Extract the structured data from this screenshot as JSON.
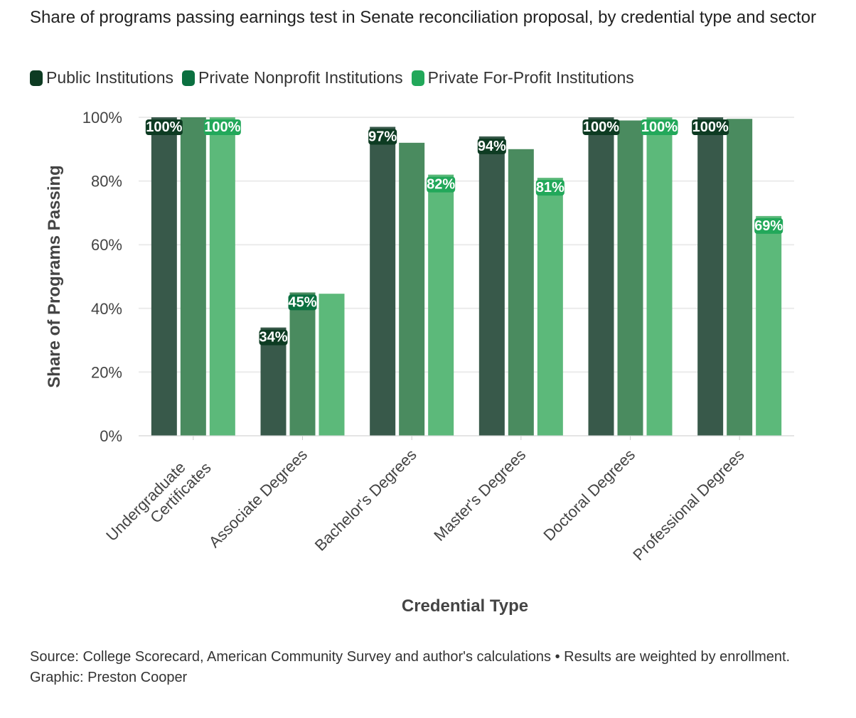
{
  "chart_data": {
    "type": "bar",
    "title": "Share of programs passing earnings test in Senate reconciliation proposal, by credential type and sector",
    "xlabel": "Credential Type",
    "ylabel": "Share of Programs Passing",
    "ylim": [
      0,
      100
    ],
    "yticks": [
      "0%",
      "20%",
      "40%",
      "60%",
      "80%",
      "100%"
    ],
    "ytick_values": [
      0,
      20,
      40,
      60,
      80,
      100
    ],
    "grid": true,
    "legend_position": "top-left",
    "categories": [
      [
        "Undergraduate",
        "Certificates"
      ],
      [
        "Associate Degrees"
      ],
      [
        "Bachelor's Degrees"
      ],
      [
        "Master's Degrees"
      ],
      [
        "Doctoral Degrees"
      ],
      [
        "Professional Degrees"
      ]
    ],
    "series": [
      {
        "name": "Public Institutions",
        "legend_color": "#0d3b22",
        "bar_color": "#38594a",
        "values": [
          100,
          34,
          97,
          94,
          100,
          100
        ],
        "labels": [
          "100%",
          "34%",
          "97%",
          "94%",
          "100%",
          "100%"
        ]
      },
      {
        "name": "Private Nonprofit Institutions",
        "legend_color": "#0b7040",
        "bar_color": "#4a8b5f",
        "values": [
          100,
          45,
          92,
          90,
          99,
          99.5
        ],
        "labels": [
          null,
          "45%",
          null,
          null,
          null,
          null
        ]
      },
      {
        "name": "Private For-Profit Institutions",
        "legend_color": "#22a85a",
        "bar_color": "#5cb97a",
        "values": [
          100,
          44.6,
          82,
          81,
          100,
          69
        ],
        "labels": [
          "100%",
          null,
          "82%",
          "81%",
          "100%",
          "69%"
        ]
      }
    ]
  },
  "footer": {
    "source": "Source: College Scorecard, American Community Survey and author's calculations • Results are weighted by enrollment.",
    "graphic": "Graphic: Preston Cooper"
  }
}
